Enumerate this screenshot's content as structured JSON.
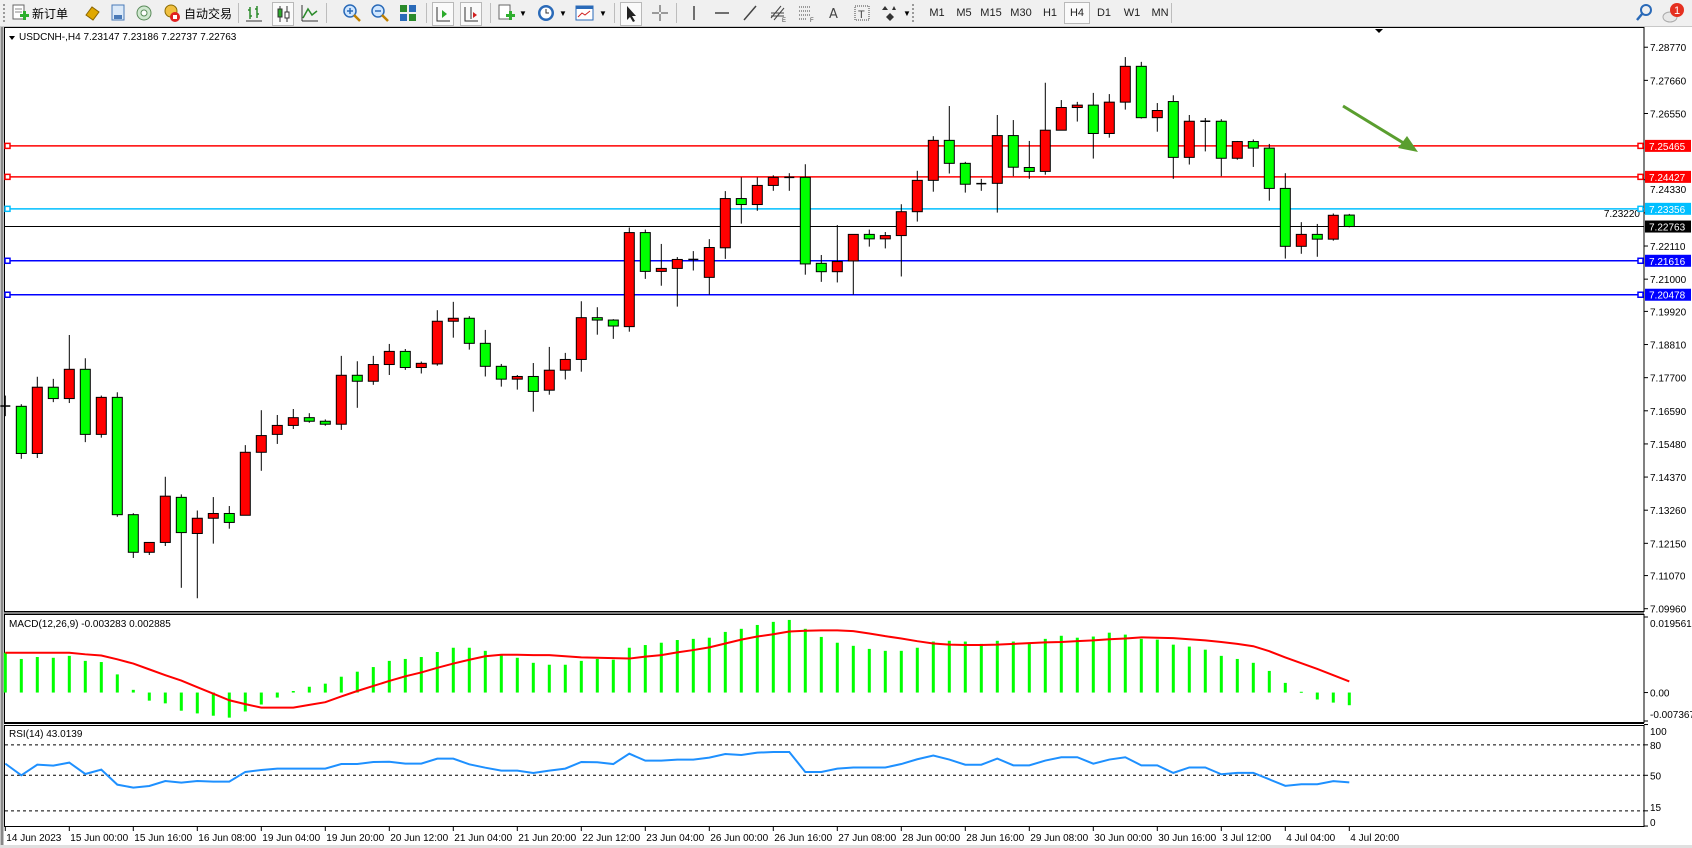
{
  "toolbar": {
    "new_order_label": "新订单",
    "auto_trading_label": "自动交易",
    "icons": [
      "new-order-icon",
      "market-watch-icon",
      "data-window-icon",
      "navigator-icon",
      "auto-trading-icon",
      "bar-chart-icon",
      "candlestick-icon",
      "line-chart-icon",
      "zoom-in-icon",
      "zoom-out-icon",
      "tile-windows-icon",
      "auto-scroll-icon",
      "chart-shift-icon",
      "indicators-icon",
      "periods-icon",
      "templates-icon",
      "cursor-icon",
      "crosshair-icon",
      "vertical-line-icon",
      "horizontal-line-icon",
      "trendline-icon",
      "equidistant-channel-icon",
      "fibonacci-icon",
      "text-icon",
      "text-label-icon",
      "arrows-icon",
      "search-icon",
      "notification-icon"
    ],
    "timeframes": [
      "M1",
      "M5",
      "M15",
      "M30",
      "H1",
      "H4",
      "D1",
      "W1",
      "MN"
    ],
    "active_timeframe": "H4",
    "notification_count": "1"
  },
  "chart": {
    "header": "USDCNH-,H4  7.23147 7.23186 7.22737 7.22763",
    "symbol": "USDCNH-",
    "timeframe": "H4",
    "colors": {
      "bull": "#ff0000",
      "bear": "#00ff00",
      "macd_hist": "#00ff00",
      "macd_signal": "#ff0000",
      "rsi": "#1e90ff",
      "arrow": "#5a9e2f"
    },
    "price_ticks": [
      "7.28770",
      "7.27660",
      "7.26550",
      "7.24330",
      "7.23220",
      "7.22110",
      "7.21000",
      "7.19920",
      "7.18810",
      "7.17700",
      "7.16590",
      "7.15480",
      "7.14370",
      "7.13260",
      "7.12150",
      "7.11070",
      "7.09960"
    ],
    "hlines": [
      {
        "price": 7.25465,
        "label": "7.25465",
        "color": "#ff0000"
      },
      {
        "price": 7.24427,
        "label": "7.24427",
        "color": "#ff0000"
      },
      {
        "price": 7.23356,
        "label": "7.23356",
        "color": "#00bfff"
      },
      {
        "price": 7.21616,
        "label": "7.21616",
        "color": "#0000ff"
      },
      {
        "price": 7.20478,
        "label": "7.20478",
        "color": "#0000ff"
      }
    ],
    "current_price": {
      "price": 7.22763,
      "label": "7.22763"
    },
    "annotation_arrow": {
      "direction": "down-right",
      "color": "#5a9e2f"
    },
    "date_labels": [
      "14 Jun 2023",
      "15 Jun 00:00",
      "15 Jun 16:00",
      "16 Jun 08:00",
      "19 Jun 04:00",
      "19 Jun 20:00",
      "20 Jun 12:00",
      "21 Jun 04:00",
      "21 Jun 20:00",
      "22 Jun 12:00",
      "23 Jun 04:00",
      "26 Jun 00:00",
      "26 Jun 16:00",
      "27 Jun 08:00",
      "28 Jun 00:00",
      "28 Jun 16:00",
      "29 Jun 08:00",
      "30 Jun 00:00",
      "30 Jun 16:00",
      "3 Jul 12:00",
      "4 Jul 04:00",
      "4 Jul 20:00"
    ]
  },
  "macd": {
    "header": "MACD(12,26,9) -0.003283 0.002885",
    "axis_labels": [
      "0.019561",
      "0.00",
      "-0.007367"
    ],
    "range": [
      -0.007367,
      0.019561
    ]
  },
  "rsi": {
    "header": "RSI(14) 43.0139",
    "levels": [
      80,
      50,
      15
    ],
    "axis_labels": [
      "100",
      "80",
      "50",
      "15",
      "0"
    ]
  },
  "chart_data": {
    "type": "candlestick",
    "ylim": [
      7.0996,
      7.2877
    ],
    "ohlc": [
      [
        7.1675,
        7.171,
        7.1641,
        7.1675
      ],
      [
        7.1674,
        7.1681,
        7.1498,
        7.1516
      ],
      [
        7.1516,
        7.1773,
        7.1501,
        7.1738
      ],
      [
        7.1738,
        7.1766,
        7.1688,
        7.17
      ],
      [
        7.17,
        7.1913,
        7.1685,
        7.1798
      ],
      [
        7.1798,
        7.1835,
        7.1554,
        7.158
      ],
      [
        7.158,
        7.171,
        7.1569,
        7.1704
      ],
      [
        7.1704,
        7.1721,
        7.1304,
        7.1311
      ],
      [
        7.1311,
        7.1316,
        7.1166,
        7.1185
      ],
      [
        7.1185,
        7.1219,
        7.1176,
        7.1218
      ],
      [
        7.1218,
        7.1438,
        7.1206,
        7.1373
      ],
      [
        7.1369,
        7.1379,
        7.1066,
        7.1251
      ],
      [
        7.1248,
        7.1325,
        7.1031,
        7.1299
      ],
      [
        7.1299,
        7.137,
        7.1214,
        7.1315
      ],
      [
        7.1315,
        7.134,
        7.1264,
        7.1285
      ],
      [
        7.1309,
        7.1544,
        7.1309,
        7.152
      ],
      [
        7.152,
        7.1661,
        7.1458,
        7.1576
      ],
      [
        7.158,
        7.1645,
        7.1548,
        7.161
      ],
      [
        7.161,
        7.1665,
        7.1598,
        7.1636
      ],
      [
        7.1636,
        7.1651,
        7.1619,
        7.1624
      ],
      [
        7.1624,
        7.163,
        7.1609,
        7.1614
      ],
      [
        7.1614,
        7.1843,
        7.1595,
        7.1778
      ],
      [
        7.1778,
        7.1825,
        7.1669,
        7.1758
      ],
      [
        7.1758,
        7.1843,
        7.1746,
        7.1814
      ],
      [
        7.1814,
        7.1883,
        7.1779,
        7.1858
      ],
      [
        7.1858,
        7.1866,
        7.1796,
        7.1804
      ],
      [
        7.1804,
        7.1824,
        7.1784,
        7.1818
      ],
      [
        7.1816,
        7.1996,
        7.181,
        7.1959
      ],
      [
        7.1959,
        7.2024,
        7.1904,
        7.1969
      ],
      [
        7.1969,
        7.1976,
        7.1864,
        7.1885
      ],
      [
        7.1885,
        7.193,
        7.1774,
        7.1808
      ],
      [
        7.1808,
        7.1816,
        7.174,
        7.1765
      ],
      [
        7.1765,
        7.1779,
        7.173,
        7.1774
      ],
      [
        7.1774,
        7.1819,
        7.1656,
        7.1724
      ],
      [
        7.1728,
        7.1873,
        7.1713,
        7.1795
      ],
      [
        7.1795,
        7.1853,
        7.1764,
        7.1831
      ],
      [
        7.1831,
        7.2026,
        7.179,
        7.1971
      ],
      [
        7.1971,
        7.2006,
        7.1914,
        7.1963
      ],
      [
        7.1963,
        7.1966,
        7.19,
        7.1943
      ],
      [
        7.1941,
        7.2273,
        7.1924,
        7.2256
      ],
      [
        7.2256,
        7.2266,
        7.2101,
        7.2126
      ],
      [
        7.2126,
        7.2218,
        7.2078,
        7.2136
      ],
      [
        7.2136,
        7.2174,
        7.2008,
        7.2166
      ],
      [
        7.2166,
        7.2194,
        7.2129,
        7.2165
      ],
      [
        7.2106,
        7.2234,
        7.2048,
        7.2206
      ],
      [
        7.2205,
        7.2395,
        7.2168,
        7.237
      ],
      [
        7.237,
        7.2441,
        7.2286,
        7.235
      ],
      [
        7.235,
        7.2441,
        7.2329,
        7.2414
      ],
      [
        7.2414,
        7.2448,
        7.2396,
        7.2441
      ],
      [
        7.2441,
        7.2455,
        7.2396,
        7.2441
      ],
      [
        7.2441,
        7.2485,
        7.2115,
        7.2151
      ],
      [
        7.2153,
        7.2181,
        7.2091,
        7.2125
      ],
      [
        7.2125,
        7.2281,
        7.2089,
        7.2159
      ],
      [
        7.2161,
        7.225,
        7.2048,
        7.225
      ],
      [
        7.225,
        7.2266,
        7.2209,
        7.2235
      ],
      [
        7.2235,
        7.2258,
        7.2203,
        7.2246
      ],
      [
        7.2246,
        7.2351,
        7.2109,
        7.2326
      ],
      [
        7.2326,
        7.2463,
        7.2293,
        7.2431
      ],
      [
        7.2431,
        7.2579,
        7.2393,
        7.2565
      ],
      [
        7.2565,
        7.268,
        7.2454,
        7.2488
      ],
      [
        7.2488,
        7.2493,
        7.239,
        7.2418
      ],
      [
        7.242,
        7.2436,
        7.2396,
        7.242
      ],
      [
        7.2421,
        7.265,
        7.2323,
        7.2581
      ],
      [
        7.2581,
        7.2633,
        7.2445,
        7.2475
      ],
      [
        7.2474,
        7.2563,
        7.2436,
        7.2461
      ],
      [
        7.2461,
        7.2758,
        7.245,
        7.2599
      ],
      [
        7.2599,
        7.27,
        7.2599,
        7.2675
      ],
      [
        7.2675,
        7.2694,
        7.2628,
        7.2683
      ],
      [
        7.2683,
        7.2724,
        7.2504,
        7.2588
      ],
      [
        7.2588,
        7.272,
        7.2574,
        7.2693
      ],
      [
        7.2693,
        7.2844,
        7.2668,
        7.2813
      ],
      [
        7.2813,
        7.2828,
        7.2638,
        7.2641
      ],
      [
        7.2641,
        7.269,
        7.2594,
        7.2665
      ],
      [
        7.2695,
        7.2716,
        7.2436,
        7.2508
      ],
      [
        7.2508,
        7.265,
        7.2484,
        7.2629
      ],
      [
        7.2629,
        7.264,
        7.2528,
        7.2629
      ],
      [
        7.2629,
        7.2636,
        7.2445,
        7.2505
      ],
      [
        7.2505,
        7.2563,
        7.25,
        7.2561
      ],
      [
        7.2561,
        7.2568,
        7.2476,
        7.2539
      ],
      [
        7.2539,
        7.2553,
        7.2363,
        7.2404
      ],
      [
        7.2404,
        7.2455,
        7.2169,
        7.221
      ],
      [
        7.221,
        7.2291,
        7.2185,
        7.225
      ],
      [
        7.225,
        7.2285,
        7.2175,
        7.2234
      ],
      [
        7.2234,
        7.232,
        7.2229,
        7.2314
      ],
      [
        7.23147,
        7.23186,
        7.22737,
        7.22763
      ]
    ],
    "macd_hist": [
      0.0103,
      0.0087,
      0.0092,
      0.009,
      0.0095,
      0.0082,
      0.0079,
      0.0047,
      0.0007,
      -0.0021,
      -0.0028,
      -0.0047,
      -0.0054,
      -0.006,
      -0.0065,
      -0.0049,
      -0.0031,
      -0.0013,
      0.0004,
      0.0015,
      0.0023,
      0.0041,
      0.0054,
      0.0066,
      0.0082,
      0.0087,
      0.0092,
      0.0105,
      0.0116,
      0.0116,
      0.0108,
      0.0098,
      0.009,
      0.0077,
      0.0072,
      0.0072,
      0.0082,
      0.0087,
      0.0085,
      0.0116,
      0.0123,
      0.0129,
      0.0136,
      0.0139,
      0.0142,
      0.0157,
      0.0165,
      0.0175,
      0.0183,
      0.0188,
      0.0165,
      0.0144,
      0.0129,
      0.0121,
      0.0113,
      0.0108,
      0.0108,
      0.0116,
      0.0132,
      0.0134,
      0.0132,
      0.0126,
      0.0134,
      0.0132,
      0.0126,
      0.0139,
      0.0147,
      0.0142,
      0.0145,
      0.0155,
      0.015,
      0.0139,
      0.0137,
      0.0124,
      0.0119,
      0.0111,
      0.0095,
      0.0087,
      0.0077,
      0.0056,
      0.0025,
      0.0002,
      -0.0018,
      -0.0026,
      -0.003283
    ],
    "macd_signal": [
      0.0103,
      0.0103,
      0.0103,
      0.0103,
      0.0103,
      0.0099,
      0.0096,
      0.0086,
      0.0075,
      0.006,
      0.0045,
      0.0031,
      0.0014,
      -0.0003,
      -0.002,
      -0.003,
      -0.0039,
      -0.0039,
      -0.0039,
      -0.0032,
      -0.0025,
      -0.001,
      0.0004,
      0.0017,
      0.003,
      0.0042,
      0.0052,
      0.0064,
      0.0075,
      0.0085,
      0.0094,
      0.0098,
      0.0098,
      0.0097,
      0.0097,
      0.0094,
      0.0091,
      0.009,
      0.0089,
      0.0088,
      0.0093,
      0.0097,
      0.0104,
      0.011,
      0.0117,
      0.0127,
      0.0137,
      0.0145,
      0.0151,
      0.0158,
      0.016,
      0.0161,
      0.0161,
      0.0159,
      0.0153,
      0.0146,
      0.014,
      0.0133,
      0.0127,
      0.0124,
      0.0123,
      0.0123,
      0.0124,
      0.0126,
      0.0128,
      0.013,
      0.0131,
      0.0133,
      0.0135,
      0.0138,
      0.014,
      0.0143,
      0.0142,
      0.0141,
      0.0138,
      0.0135,
      0.0131,
      0.0126,
      0.012,
      0.0107,
      0.0091,
      0.0076,
      0.0061,
      0.0045,
      0.002885
    ],
    "rsi": [
      61.5,
      50.0,
      60.5,
      59.5,
      62.5,
      51.3,
      55.6,
      40.8,
      37.9,
      39.5,
      44.4,
      42.8,
      44.4,
      43.8,
      43.8,
      53.3,
      55.2,
      56.6,
      56.6,
      56.6,
      56.6,
      61.1,
      61.1,
      63.1,
      63.4,
      61.5,
      61.5,
      66.4,
      66.4,
      60.8,
      57.5,
      54.6,
      54.6,
      52.3,
      54.6,
      56.6,
      63.1,
      62.8,
      61.1,
      71.3,
      64.4,
      64.4,
      65.4,
      65.4,
      67.4,
      71.0,
      70.0,
      72.3,
      73.0,
      73.0,
      53.3,
      53.3,
      56.6,
      57.7,
      57.7,
      57.7,
      61.1,
      65.8,
      69.5,
      65.5,
      60.4,
      60.4,
      66.5,
      59.8,
      59.8,
      64.5,
      67.8,
      67.8,
      61.4,
      65.5,
      67.8,
      59.8,
      59.8,
      52.4,
      57.7,
      57.7,
      51.0,
      52.4,
      52.4,
      46.0,
      39.6,
      41.2,
      41.2,
      44.3,
      43.0139
    ]
  }
}
